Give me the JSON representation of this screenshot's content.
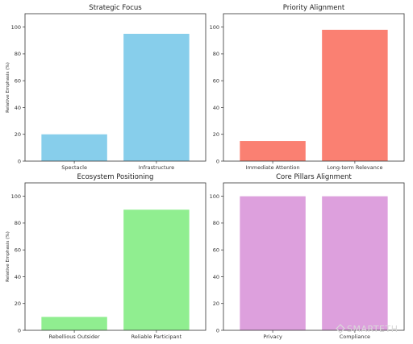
{
  "watermark": "SMARTETH",
  "chart_data": [
    {
      "type": "bar",
      "title": "Strategic Focus",
      "ylabel": "Relative Emphasis (%)",
      "categories": [
        "Spectacle",
        "Infrastructure"
      ],
      "values": [
        20,
        95
      ],
      "ylim": [
        0,
        110
      ],
      "yticks": [
        0,
        20,
        40,
        60,
        80,
        100
      ],
      "color": "#87CEEB",
      "grid": false
    },
    {
      "type": "bar",
      "title": "Priority Alignment",
      "ylabel": "",
      "categories": [
        "Immediate Attention",
        "Long-term Relevance"
      ],
      "values": [
        15,
        98
      ],
      "ylim": [
        0,
        110
      ],
      "yticks": [
        0,
        20,
        40,
        60,
        80,
        100
      ],
      "color": "#FA8072",
      "grid": false
    },
    {
      "type": "bar",
      "title": "Ecosystem Positioning",
      "ylabel": "Relative Emphasis (%)",
      "categories": [
        "Rebellious Outsider",
        "Reliable Participant"
      ],
      "values": [
        10,
        90
      ],
      "ylim": [
        0,
        110
      ],
      "yticks": [
        0,
        20,
        40,
        60,
        80,
        100
      ],
      "color": "#90EE90",
      "grid": false
    },
    {
      "type": "bar",
      "title": "Core Pillars Alignment",
      "ylabel": "",
      "categories": [
        "Privacy",
        "Compliance"
      ],
      "values": [
        100,
        100
      ],
      "ylim": [
        0,
        110
      ],
      "yticks": [
        0,
        20,
        40,
        60,
        80,
        100
      ],
      "color": "#DDA0DD",
      "grid": false
    }
  ]
}
